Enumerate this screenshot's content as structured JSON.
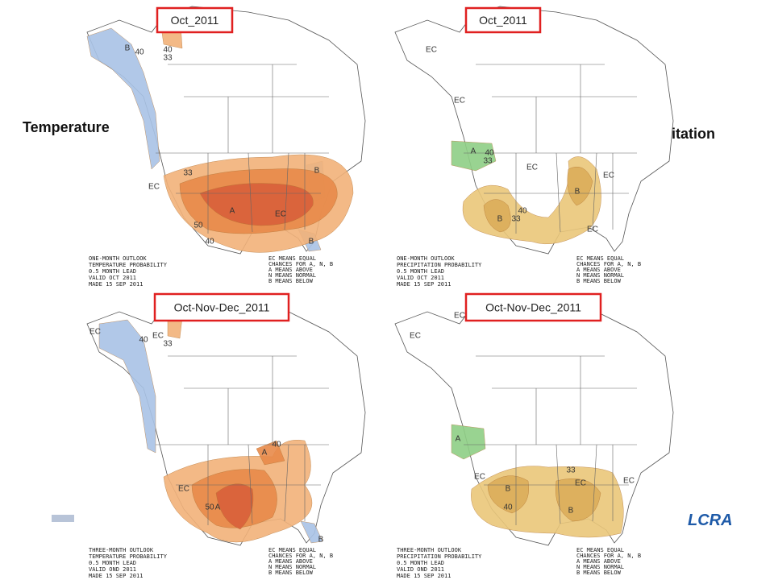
{
  "labels": {
    "temperature": "Temperature",
    "precipitation": "Precipitation"
  },
  "panels": [
    {
      "period": "Oct_2011",
      "caption": [
        "ONE-MONTH OUTLOOK",
        "TEMPERATURE PROBABILITY",
        "0.5 MONTH LEAD",
        "VALID OCT 2011",
        "MADE 15 SEP 2011"
      ],
      "legend": [
        "EC MEANS EQUAL",
        "CHANCES FOR A, N, B",
        "A MEANS ABOVE",
        "N MEANS NORMAL",
        "B MEANS BELOW"
      ],
      "map_labels": [
        "B",
        "40",
        "40",
        "33",
        "EC",
        "33",
        "A",
        "50",
        "40",
        "B",
        "EC",
        "B"
      ]
    },
    {
      "period": "Oct_2011",
      "caption": [
        "ONE-MONTH OUTLOOK",
        "PRECIPITATION PROBABILITY",
        "0.5 MONTH LEAD",
        "VALID OCT 2011",
        "MADE 15 SEP 2011"
      ],
      "legend": [
        "EC MEANS EQUAL",
        "CHANCES FOR A, N, B",
        "A MEANS ABOVE",
        "N MEANS NORMAL",
        "B MEANS BELOW"
      ],
      "map_labels": [
        "EC",
        "EC",
        "A",
        "40",
        "33",
        "EC",
        "B",
        "40",
        "B",
        "33",
        "EC",
        "EC"
      ]
    },
    {
      "period": "Oct-Nov-Dec_2011",
      "caption": [
        "THREE-MONTH OUTLOOK",
        "TEMPERATURE PROBABILITY",
        "0.5 MONTH LEAD",
        "VALID OND 2011",
        "MADE 15 SEP 2011"
      ],
      "legend": [
        "EC MEANS EQUAL",
        "CHANCES FOR A, N, B",
        "A MEANS ABOVE",
        "N MEANS NORMAL",
        "B MEANS BELOW"
      ],
      "map_labels": [
        "EC",
        "40",
        "EC",
        "33",
        "A",
        "40",
        "A",
        "50",
        "EC",
        "B"
      ]
    },
    {
      "period": "Oct-Nov-Dec_2011",
      "caption": [
        "THREE-MONTH OUTLOOK",
        "PRECIPITATION PROBABILITY",
        "0.5 MONTH LEAD",
        "VALID OND 2011",
        "MADE 15 SEP 2011"
      ],
      "legend": [
        "EC MEANS EQUAL",
        "CHANCES FOR A, N, B",
        "A MEANS ABOVE",
        "N MEANS NORMAL",
        "B MEANS BELOW"
      ],
      "map_labels": [
        "EC",
        "EC",
        "A",
        "EC",
        "B",
        "40",
        "B",
        "33",
        "EC",
        "EC"
      ]
    }
  ],
  "logo": "LCRA"
}
